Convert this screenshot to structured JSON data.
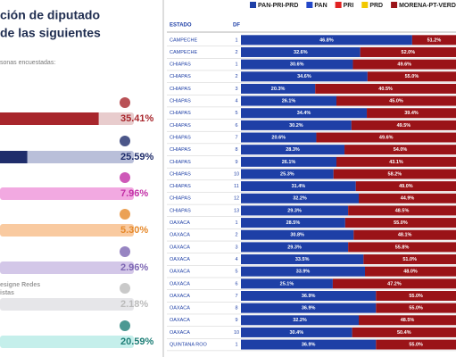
{
  "chart_data": [
    {
      "type": "hbar",
      "title": [
        "ción de diputado",
        "de las siguientes"
      ],
      "subtitle": "sonas encuestadas:",
      "notes": [
        "esigne Redes",
        "istas"
      ],
      "values": [
        35.41,
        25.59,
        7.96,
        5.3,
        2.96,
        2.18,
        20.59
      ],
      "value_labels": [
        "35.41%",
        "25.59%",
        "7.96%",
        "5.30%",
        "2.96%",
        "2.18%",
        "20.59%"
      ],
      "colors": [
        "#a8262c",
        "#1f2d6b",
        "#c22fa6",
        "#e6892a",
        "#7d66b3",
        "#bbbbbb",
        "#1f7f78"
      ],
      "track_colors": [
        "#e8cccd",
        "#b9bfd9",
        "#f2a9e1",
        "#f9caa0",
        "#d3c7e8",
        "#e6e6e9",
        "#c5efeb"
      ]
    },
    {
      "type": "stacked-hbar",
      "column_headers": [
        "ESTADO",
        "DF"
      ],
      "states": [
        "CAMPECHE",
        "CAMPECHE",
        "CHIAPAS",
        "CHIAPAS",
        "CHIAPAS",
        "CHIAPAS",
        "CHIAPAS",
        "CHIAPAS",
        "CHIAPAS",
        "CHIAPAS",
        "CHIAPAS",
        "CHIAPAS",
        "CHIAPAS",
        "CHIAPAS",
        "CHIAPAS",
        "OAXACA",
        "OAXACA",
        "OAXACA",
        "OAXACA",
        "OAXACA",
        "OAXACA",
        "OAXACA",
        "OAXACA",
        "OAXACA",
        "OAXACA",
        "QUINTANA ROO"
      ],
      "districts": [
        1,
        2,
        1,
        2,
        3,
        4,
        5,
        6,
        7,
        8,
        9,
        10,
        11,
        12,
        13,
        1,
        2,
        3,
        4,
        5,
        6,
        7,
        8,
        9,
        10,
        1
      ],
      "xlim": [
        0,
        100
      ],
      "series": [
        {
          "name": "PAN-PRI-PRD",
          "color": "#1e3fa6",
          "values": [
            46.8,
            32.6,
            30.6,
            34.6,
            20.3,
            26.1,
            34.4,
            30.2,
            20.6,
            28.3,
            26.1,
            25.3,
            31.4,
            32.2,
            29.3,
            28.5,
            30.8,
            29.3,
            33.5,
            33.9,
            25.1,
            36.9,
            36.9,
            32.2,
            30.4,
            36.9
          ],
          "value_labels": [
            "46.8%",
            "32.6%",
            "30.6%",
            "34.6%",
            "20.3%",
            "26.1%",
            "34.4%",
            "30.2%",
            "20.6%",
            "28.3%",
            "26.1%",
            "25.3%",
            "31.4%",
            "32.2%",
            "29.3%",
            "28.5%",
            "30.8%",
            "29.3%",
            "33.5%",
            "33.9%",
            "25.1%",
            "36.9%",
            "36.9%",
            "32.2%",
            "30.4%",
            "36.9%"
          ]
        },
        {
          "name": "PAN",
          "color": "#2448c8",
          "values": [
            null,
            null,
            null,
            null,
            null,
            null,
            null,
            null,
            null,
            null,
            null,
            null,
            null,
            null,
            null,
            null,
            null,
            null,
            null,
            null,
            null,
            null,
            null,
            null,
            null,
            null
          ]
        },
        {
          "name": "PRI",
          "color": "#e02222",
          "values": [
            null,
            null,
            null,
            null,
            null,
            null,
            null,
            null,
            null,
            null,
            null,
            null,
            null,
            null,
            null,
            null,
            null,
            null,
            null,
            null,
            null,
            null,
            null,
            null,
            null,
            null
          ]
        },
        {
          "name": "PRD",
          "color": "#f2c800",
          "values": [
            null,
            null,
            null,
            null,
            null,
            null,
            null,
            null,
            null,
            null,
            null,
            null,
            null,
            null,
            null,
            null,
            null,
            null,
            null,
            null,
            null,
            null,
            null,
            null,
            null,
            null
          ]
        },
        {
          "name": "MORENA-PT-VERDE",
          "color": "#9a1318",
          "values": [
            51.2,
            52.0,
            49.6,
            55.0,
            40.5,
            45.0,
            39.4,
            49.5,
            49.6,
            54.0,
            43.1,
            58.2,
            49.0,
            44.9,
            48.5,
            55.0,
            48.1,
            55.8,
            51.0,
            48.0,
            47.2,
            55.0,
            55.0,
            48.5,
            50.4,
            55.0
          ],
          "value_labels": [
            "51.2%",
            "52.0%",
            "49.6%",
            "55.0%",
            "40.5%",
            "45.0%",
            "39.4%",
            "49.5%",
            "49.6%",
            "54.0%",
            "43.1%",
            "58.2%",
            "49.0%",
            "44.9%",
            "48.5%",
            "55.0%",
            "48.1%",
            "55.8%",
            "51.0%",
            "48.0%",
            "47.2%",
            "55.0%",
            "55.0%",
            "48.5%",
            "50.4%",
            "55.0%"
          ]
        }
      ]
    }
  ]
}
